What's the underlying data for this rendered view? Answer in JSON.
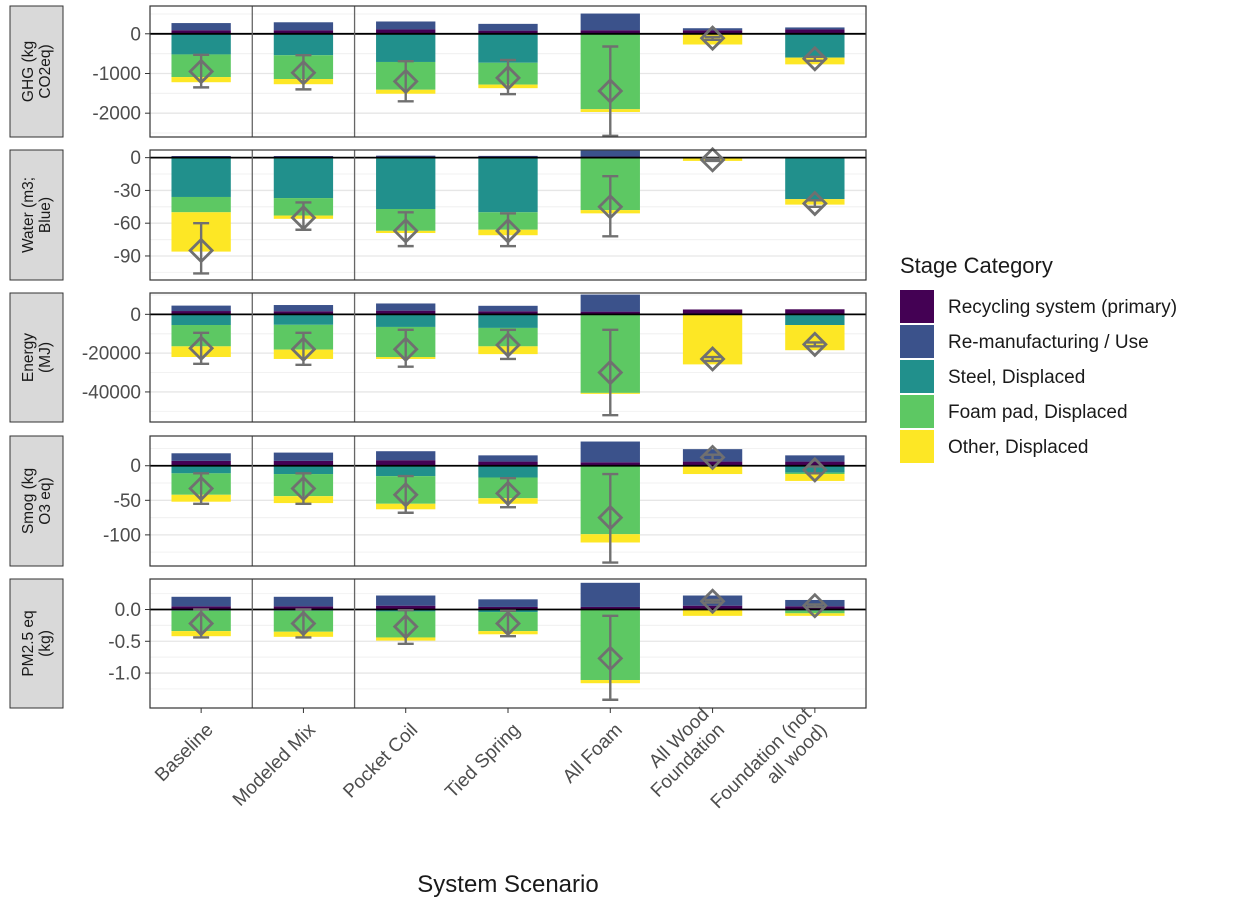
{
  "chart_data": {
    "type": "bar",
    "stacked": true,
    "faceted": true,
    "xlabel": "System Scenario",
    "categories": [
      "Baseline",
      "Modeled Mix",
      "Pocket Coil",
      "Tied Spring",
      "All Foam",
      "All Wood Foundation",
      "Foundation (not all wood)"
    ],
    "category_labels": [
      [
        "Baseline"
      ],
      [
        "Modeled Mix"
      ],
      [
        "Pocket Coil"
      ],
      [
        "Tied Spring"
      ],
      [
        "All Foam"
      ],
      [
        "All Wood",
        "Foundation"
      ],
      [
        "Foundation (not",
        "all wood)"
      ]
    ],
    "separators_after": [
      "Baseline",
      "Modeled Mix"
    ],
    "legend": {
      "title": "Stage Category",
      "position": "right",
      "items": [
        {
          "name": "Recycling system (primary)",
          "color": "#440154"
        },
        {
          "name": "Re-manufacturing / Use",
          "color": "#3b528b"
        },
        {
          "name": "Steel, Displaced",
          "color": "#21908c"
        },
        {
          "name": "Foam pad, Displaced",
          "color": "#5dc863"
        },
        {
          "name": "Other, Displaced",
          "color": "#fde725"
        }
      ]
    },
    "series_order": [
      "Recycling system (primary)",
      "Re-manufacturing / Use",
      "Steel, Displaced",
      "Foam pad, Displaced",
      "Other, Displaced"
    ],
    "grid": true,
    "marker": "net total shown as open diamond with error bar",
    "panels": [
      {
        "strip": [
          "GHG (kg",
          "CO2eq)"
        ],
        "ylim": [
          -2600,
          700
        ],
        "yticks": [
          0,
          -1000,
          -2000
        ],
        "tick_labels": [
          "0",
          "-1000",
          "-2000"
        ],
        "series": [
          {
            "name": "Recycling system (primary)",
            "values": [
              90,
              90,
              110,
              80,
              90,
              90,
              110
            ]
          },
          {
            "name": "Re-manufacturing / Use",
            "values": [
              180,
              200,
              200,
              170,
              420,
              50,
              50
            ]
          },
          {
            "name": "Steel, Displaced",
            "values": [
              -520,
              -540,
              -710,
              -730,
              0,
              0,
              -600
            ]
          },
          {
            "name": "Foam pad, Displaced",
            "values": [
              -570,
              -600,
              -700,
              -550,
              -1900,
              0,
              0
            ]
          },
          {
            "name": "Other, Displaced",
            "values": [
              -130,
              -130,
              -100,
              -90,
              -70,
              -270,
              -170
            ]
          }
        ],
        "net": [
          -950,
          -980,
          -1200,
          -1110,
          -1440,
          -110,
          -630
        ],
        "error_low": [
          -1350,
          -1400,
          -1700,
          -1520,
          -2570,
          -150,
          -680
        ],
        "error_high": [
          -530,
          -540,
          -690,
          -660,
          -320,
          -80,
          -580
        ]
      },
      {
        "strip": [
          "Water (m3;",
          "Blue)"
        ],
        "ylim": [
          -112,
          7
        ],
        "yticks": [
          0,
          -30,
          -60,
          -90
        ],
        "tick_labels": [
          "0",
          "-30",
          "-60",
          "-90"
        ],
        "series": [
          {
            "name": "Recycling system (primary)",
            "values": [
              1,
              1,
              1,
              1,
              1,
              0,
              0
            ]
          },
          {
            "name": "Re-manufacturing / Use",
            "values": [
              0.5,
              0.5,
              0.8,
              0.6,
              5.5,
              0,
              0
            ]
          },
          {
            "name": "Steel, Displaced",
            "values": [
              -36,
              -37,
              -47,
              -50,
              0,
              0,
              -38
            ]
          },
          {
            "name": "Foam pad, Displaced",
            "values": [
              -14,
              -16,
              -20,
              -16,
              -48,
              0,
              0
            ]
          },
          {
            "name": "Other, Displaced",
            "values": [
              -36,
              -3,
              -2,
              -5,
              -3,
              -3,
              -5
            ]
          }
        ],
        "net": [
          -85,
          -55,
          -67,
          -67,
          -45,
          -2,
          -42
        ],
        "error_low": [
          -106,
          -66,
          -81,
          -81,
          -72,
          -3,
          -45
        ],
        "error_high": [
          -60,
          -41,
          -50,
          -51,
          -17,
          -1,
          -39
        ]
      },
      {
        "strip": [
          "Energy",
          "(MJ)"
        ],
        "ylim": [
          -55500,
          11000
        ],
        "yticks": [
          0,
          -20000,
          -40000
        ],
        "tick_labels": [
          "0",
          "-20000",
          "-40000"
        ],
        "series": [
          {
            "name": "Recycling system (primary)",
            "values": [
              1700,
              1600,
              1900,
              1600,
              1400,
              2500,
              2600
            ]
          },
          {
            "name": "Re-manufacturing / Use",
            "values": [
              2800,
              3200,
              3700,
              2800,
              8800,
              0,
              0
            ]
          },
          {
            "name": "Steel, Displaced",
            "values": [
              -5500,
              -5400,
              -6500,
              -7000,
              0,
              0,
              -5500
            ]
          },
          {
            "name": "Foam pad, Displaced",
            "values": [
              -11000,
              -12800,
              -15500,
              -9500,
              -40500,
              0,
              0
            ]
          },
          {
            "name": "Other, Displaced",
            "values": [
              -5500,
              -4800,
              -1000,
              -4000,
              -500,
              -25800,
              -13000
            ]
          }
        ],
        "net": [
          -17500,
          -18000,
          -18000,
          -15800,
          -30000,
          -23000,
          -15500
        ],
        "error_low": [
          -25500,
          -26000,
          -27000,
          -23000,
          -52000,
          -24000,
          -16500
        ],
        "error_high": [
          -9500,
          -9500,
          -8000,
          -8000,
          -8000,
          -22000,
          -14500
        ]
      },
      {
        "strip": [
          "Smog (kg",
          "O3 eq)"
        ],
        "ylim": [
          -145,
          43
        ],
        "yticks": [
          0,
          -50,
          -100
        ],
        "tick_labels": [
          "0",
          "-50",
          "-100"
        ],
        "series": [
          {
            "name": "Recycling system (primary)",
            "values": [
              7,
              7,
              8,
              6,
              5,
              6,
              6
            ]
          },
          {
            "name": "Re-manufacturing / Use",
            "values": [
              11,
              12,
              13,
              9,
              30,
              18,
              9
            ]
          },
          {
            "name": "Steel, Displaced",
            "values": [
              -11,
              -12,
              -15,
              -17,
              0,
              0,
              -10
            ]
          },
          {
            "name": "Foam pad, Displaced",
            "values": [
              -31,
              -32,
              -40,
              -30,
              -99,
              0,
              -2
            ]
          },
          {
            "name": "Other, Displaced",
            "values": [
              -10,
              -10,
              -8,
              -8,
              -12,
              -12,
              -10
            ]
          }
        ],
        "net": [
          -33,
          -33,
          -42,
          -40,
          -75,
          12,
          -6
        ],
        "error_low": [
          -55,
          -55,
          -68,
          -60,
          -140,
          8,
          -11
        ],
        "error_high": [
          -11,
          -11,
          -15,
          -18,
          -12,
          16,
          -1
        ]
      },
      {
        "strip": [
          "PM2.5 eq",
          "(kg)"
        ],
        "ylim": [
          -1.55,
          0.48
        ],
        "yticks": [
          0,
          -0.5,
          -1.0
        ],
        "tick_labels": [
          "0.0",
          "-0.5",
          "-1.0"
        ],
        "series": [
          {
            "name": "Recycling system (primary)",
            "values": [
              0.05,
              0.05,
              0.06,
              0.04,
              0.04,
              0.06,
              0.05
            ]
          },
          {
            "name": "Re-manufacturing / Use",
            "values": [
              0.15,
              0.15,
              0.16,
              0.12,
              0.38,
              0.16,
              0.1
            ]
          },
          {
            "name": "Steel, Displaced",
            "values": [
              -0.02,
              -0.02,
              -0.03,
              -0.04,
              0,
              0,
              -0.02
            ]
          },
          {
            "name": "Foam pad, Displaced",
            "values": [
              -0.32,
              -0.33,
              -0.41,
              -0.3,
              -1.11,
              0,
              -0.04
            ]
          },
          {
            "name": "Other, Displaced",
            "values": [
              -0.08,
              -0.08,
              -0.05,
              -0.05,
              -0.05,
              -0.1,
              -0.04
            ]
          }
        ],
        "net": [
          -0.22,
          -0.22,
          -0.27,
          -0.22,
          -0.77,
          0.13,
          0.06
        ],
        "error_low": [
          -0.44,
          -0.44,
          -0.54,
          -0.42,
          -1.42,
          0.11,
          0.04
        ],
        "error_high": [
          0.0,
          0.0,
          -0.01,
          -0.02,
          -0.1,
          0.15,
          0.08
        ]
      }
    ]
  }
}
